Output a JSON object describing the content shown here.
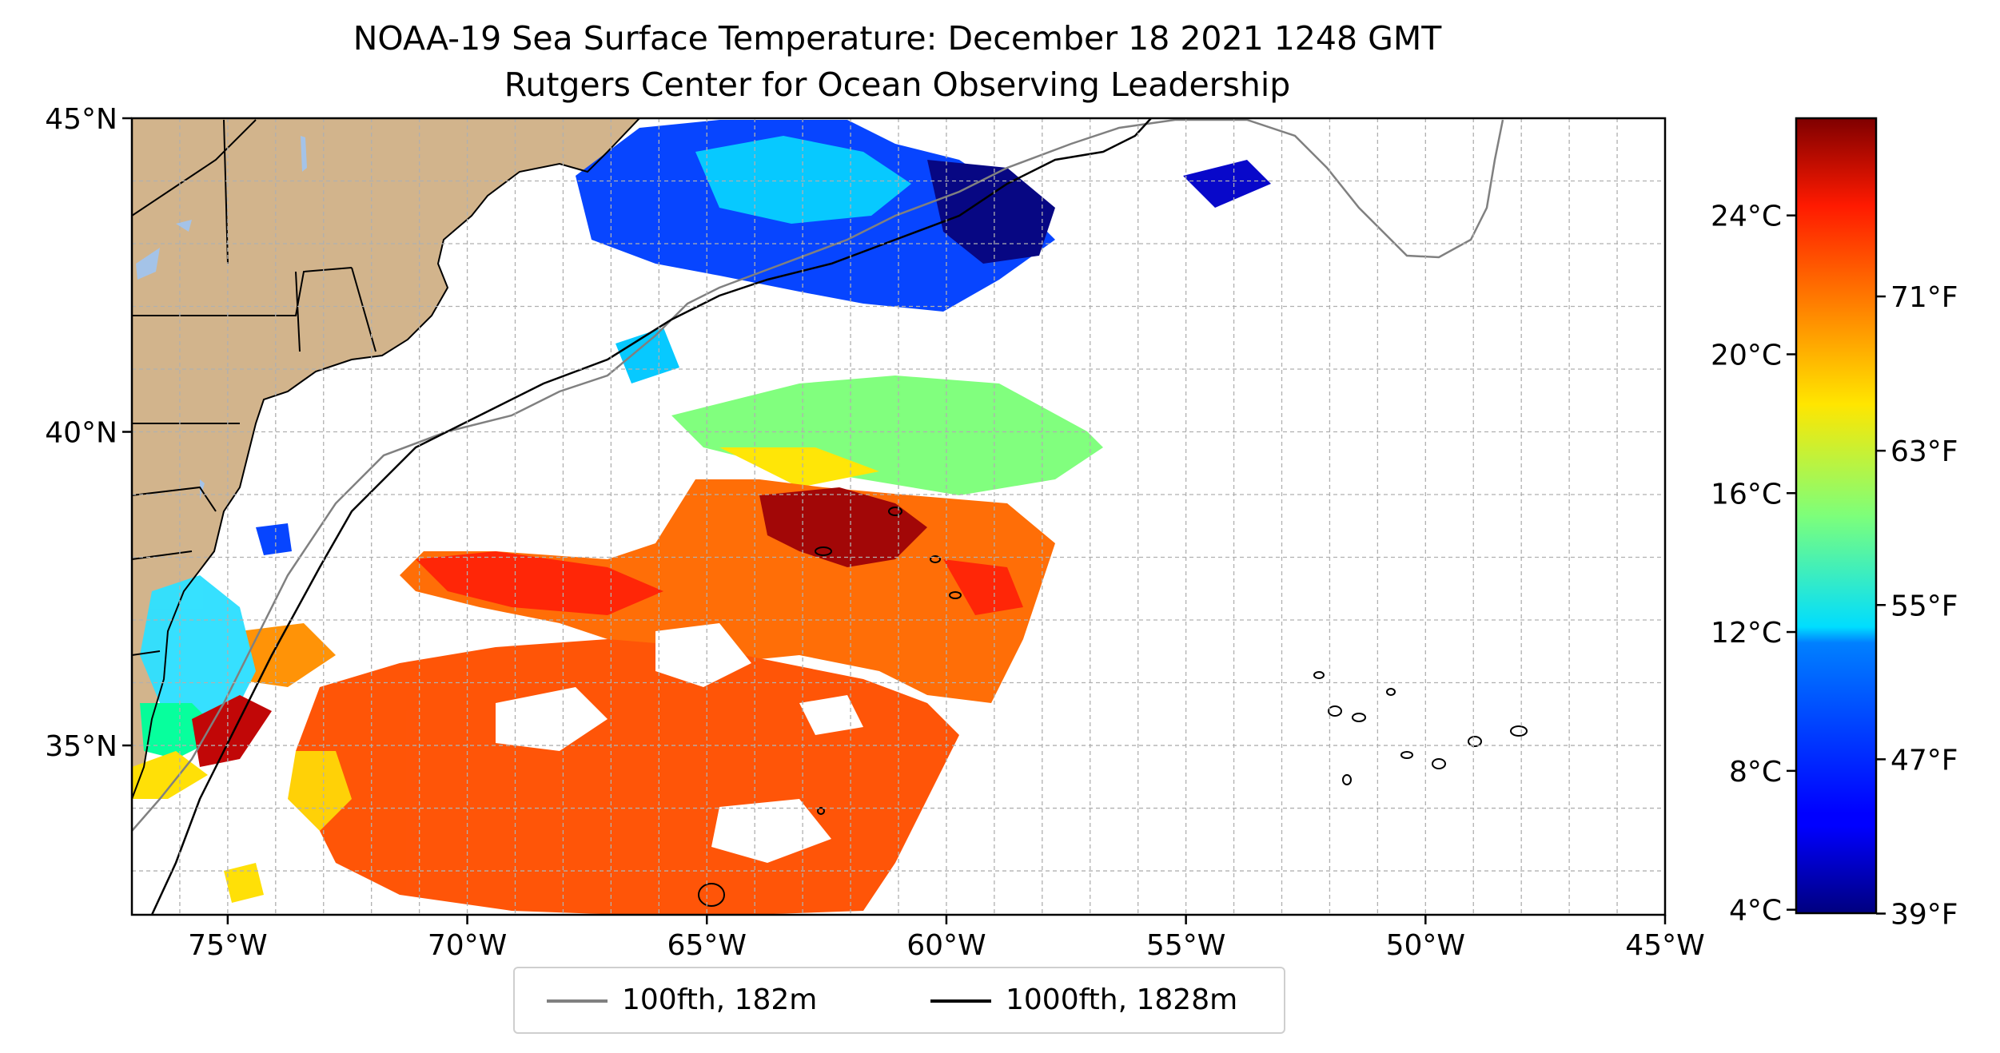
{
  "title": "NOAA-19 Sea Surface Temperature: December 18 2021 1248 GMT",
  "subtitle": "Rutgers Center for Ocean Observing Leadership",
  "map": {
    "lon_range": [
      -77,
      -45
    ],
    "lat_range": [
      32.3,
      45
    ],
    "x_ticks": [
      "75°W",
      "70°W",
      "65°W",
      "60°W",
      "55°W",
      "50°W",
      "45°W"
    ],
    "y_ticks": [
      "35°N",
      "40°N",
      "45°N"
    ],
    "gridlines": true,
    "land_color": "#d2b48c",
    "lake_color": "#a4c3e8",
    "isobath_100_color": "#808080",
    "isobath_1000_color": "#000000"
  },
  "colorbar": {
    "colormap": "jet",
    "celsius_ticks": [
      "4°C",
      "8°C",
      "12°C",
      "16°C",
      "20°C",
      "24°C"
    ],
    "fahrenheit_ticks": [
      "39°F",
      "47°F",
      "55°F",
      "63°F",
      "71°F"
    ]
  },
  "legend": {
    "placement": "bottom-center",
    "items": [
      {
        "label": "100fth, 182m",
        "color": "#808080"
      },
      {
        "label": "1000fth, 1828m",
        "color": "#000000"
      }
    ]
  }
}
